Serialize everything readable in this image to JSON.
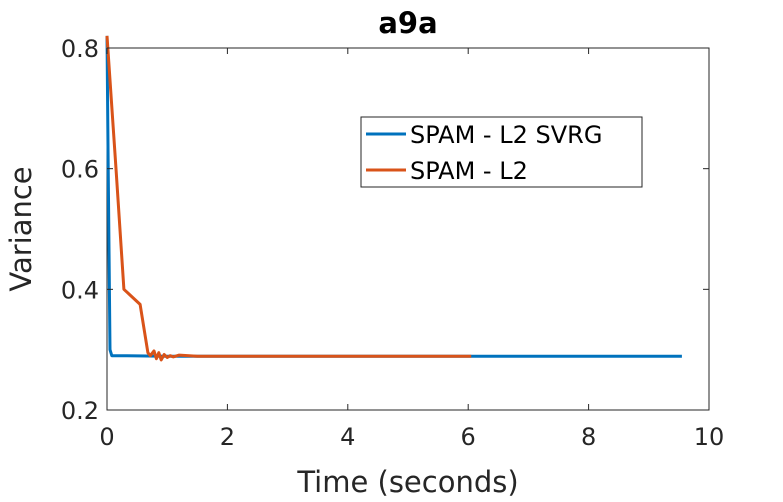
{
  "chart_data": {
    "type": "line",
    "title": "a9a",
    "xlabel": "Time (seconds)",
    "ylabel": "Variance",
    "xlim": [
      0,
      10
    ],
    "ylim": [
      0.2,
      0.8
    ],
    "xticks": [
      0,
      2,
      4,
      6,
      8,
      10
    ],
    "xtick_labels": [
      "0",
      "2",
      "4",
      "6",
      "8",
      "10"
    ],
    "yticks": [
      0.2,
      0.4,
      0.6,
      0.8
    ],
    "ytick_labels": [
      "0.2",
      "0.4",
      "0.6",
      "0.8"
    ],
    "grid": false,
    "legend_position": "top-right",
    "series": [
      {
        "name": "SPAM - L2 SVRG",
        "color": "#0072BD",
        "x": [
          0,
          0.02,
          0.05,
          0.08,
          0.2,
          1.0,
          3.0,
          6.0,
          9.55
        ],
        "y": [
          0.82,
          0.6,
          0.3,
          0.29,
          0.29,
          0.289,
          0.289,
          0.289,
          0.289
        ]
      },
      {
        "name": "SPAM - L2",
        "color": "#D95319",
        "x": [
          0,
          0.15,
          0.28,
          0.55,
          0.68,
          0.72,
          0.78,
          0.82,
          0.86,
          0.9,
          0.95,
          1.0,
          1.05,
          1.1,
          1.2,
          1.5,
          2.0,
          3.0,
          4.5,
          6.05
        ],
        "y": [
          0.82,
          0.6,
          0.4,
          0.375,
          0.295,
          0.29,
          0.298,
          0.285,
          0.295,
          0.283,
          0.292,
          0.287,
          0.29,
          0.288,
          0.291,
          0.289,
          0.289,
          0.289,
          0.289,
          0.289
        ]
      }
    ]
  }
}
